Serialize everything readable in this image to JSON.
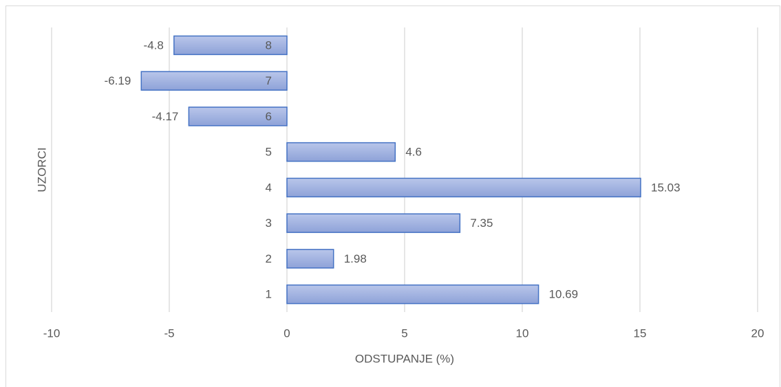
{
  "chart_data": {
    "type": "bar",
    "orientation": "horizontal",
    "x_label": "ODSTUPANJE (%)",
    "y_label": "UZORCI",
    "categories": [
      "1",
      "2",
      "3",
      "4",
      "5",
      "6",
      "7",
      "8"
    ],
    "values": [
      10.69,
      1.98,
      7.35,
      15.03,
      4.6,
      -4.17,
      -6.19,
      -4.8
    ],
    "color": "#4472c4",
    "xlim": [
      -10,
      20
    ],
    "xticks": [
      -10,
      -5,
      0,
      5,
      10,
      15,
      20
    ],
    "grid": true
  }
}
